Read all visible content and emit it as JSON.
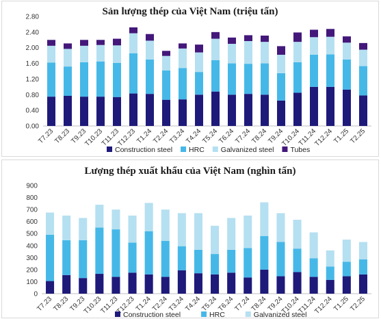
{
  "colors": {
    "construction": "#1e1a7a",
    "hrc": "#46b8e8",
    "galvanized": "#b5e0f1",
    "tubes": "#43187a"
  },
  "chart_data": [
    {
      "type": "bar",
      "stacked": true,
      "title": "Sản lượng thép của Việt Nam (triệu tấn)",
      "categories": [
        "T7.23",
        "T8.23",
        "T9.23",
        "T10.23",
        "T11.23",
        "T12.23",
        "T1.24",
        "T2.24",
        "T3.24",
        "T4.24",
        "T5.24",
        "T6.24",
        "T7.24",
        "T8.24",
        "T9.24",
        "T10.24",
        "T11.24",
        "T12.24",
        "T1.25",
        "T2.25"
      ],
      "series": [
        {
          "name": "Construction steel",
          "values": [
            0.75,
            0.77,
            0.75,
            0.75,
            0.74,
            0.83,
            0.82,
            0.67,
            0.68,
            0.8,
            0.88,
            0.8,
            0.82,
            0.8,
            0.65,
            0.85,
            1.0,
            1.0,
            0.93,
            0.78
          ]
        },
        {
          "name": "HRC",
          "values": [
            0.87,
            0.75,
            0.88,
            0.9,
            0.87,
            1.03,
            0.88,
            0.75,
            0.8,
            0.58,
            0.8,
            0.8,
            0.77,
            0.8,
            0.7,
            0.78,
            0.82,
            0.83,
            0.77,
            0.75
          ]
        },
        {
          "name": "Galvanized steel",
          "values": [
            0.43,
            0.45,
            0.42,
            0.42,
            0.45,
            0.51,
            0.48,
            0.37,
            0.5,
            0.5,
            0.55,
            0.5,
            0.58,
            0.55,
            0.47,
            0.52,
            0.45,
            0.45,
            0.43,
            0.42
          ]
        },
        {
          "name": "Tubes",
          "values": [
            0.15,
            0.14,
            0.15,
            0.13,
            0.17,
            0.15,
            0.17,
            0.13,
            0.13,
            0.2,
            0.17,
            0.16,
            0.15,
            0.16,
            0.22,
            0.24,
            0.19,
            0.2,
            0.16,
            0.17
          ]
        }
      ],
      "ylim": [
        0,
        2.8
      ],
      "yticks": [
        "0.00",
        "0.40",
        "0.80",
        "1.20",
        "1.60",
        "2.00",
        "2.40",
        "2.80"
      ],
      "grid": false,
      "legend": "bottom"
    },
    {
      "type": "bar",
      "stacked": true,
      "title": "Lượng thép xuất khẩu của Việt Nam (nghìn tấn)",
      "categories": [
        "T7.23",
        "T8.23",
        "T9.23",
        "T10.23",
        "T11.23",
        "T12.23",
        "T1.24",
        "T2.24",
        "T3.24",
        "T4.24",
        "T5.24",
        "T6.24",
        "T7.24",
        "T8.24",
        "T9.24",
        "T10.24",
        "T11.24",
        "T12.24",
        "T1.25",
        "T2.25"
      ],
      "series": [
        {
          "name": "Construction steel",
          "values": [
            105,
            155,
            130,
            165,
            140,
            175,
            160,
            140,
            195,
            170,
            160,
            175,
            135,
            200,
            145,
            180,
            140,
            115,
            145,
            160
          ]
        },
        {
          "name": "HRC",
          "values": [
            385,
            290,
            315,
            385,
            395,
            250,
            360,
            300,
            200,
            195,
            170,
            190,
            245,
            280,
            285,
            195,
            155,
            110,
            120,
            125
          ]
        },
        {
          "name": "Galvanized steel",
          "values": [
            185,
            205,
            185,
            190,
            165,
            225,
            235,
            260,
            275,
            305,
            235,
            265,
            270,
            280,
            240,
            240,
            215,
            135,
            185,
            145
          ]
        }
      ],
      "ylim": [
        0,
        900
      ],
      "yticks": [
        "0",
        "100",
        "200",
        "300",
        "400",
        "500",
        "600",
        "700",
        "800",
        "900"
      ],
      "grid": false,
      "legend": "bottom"
    }
  ]
}
